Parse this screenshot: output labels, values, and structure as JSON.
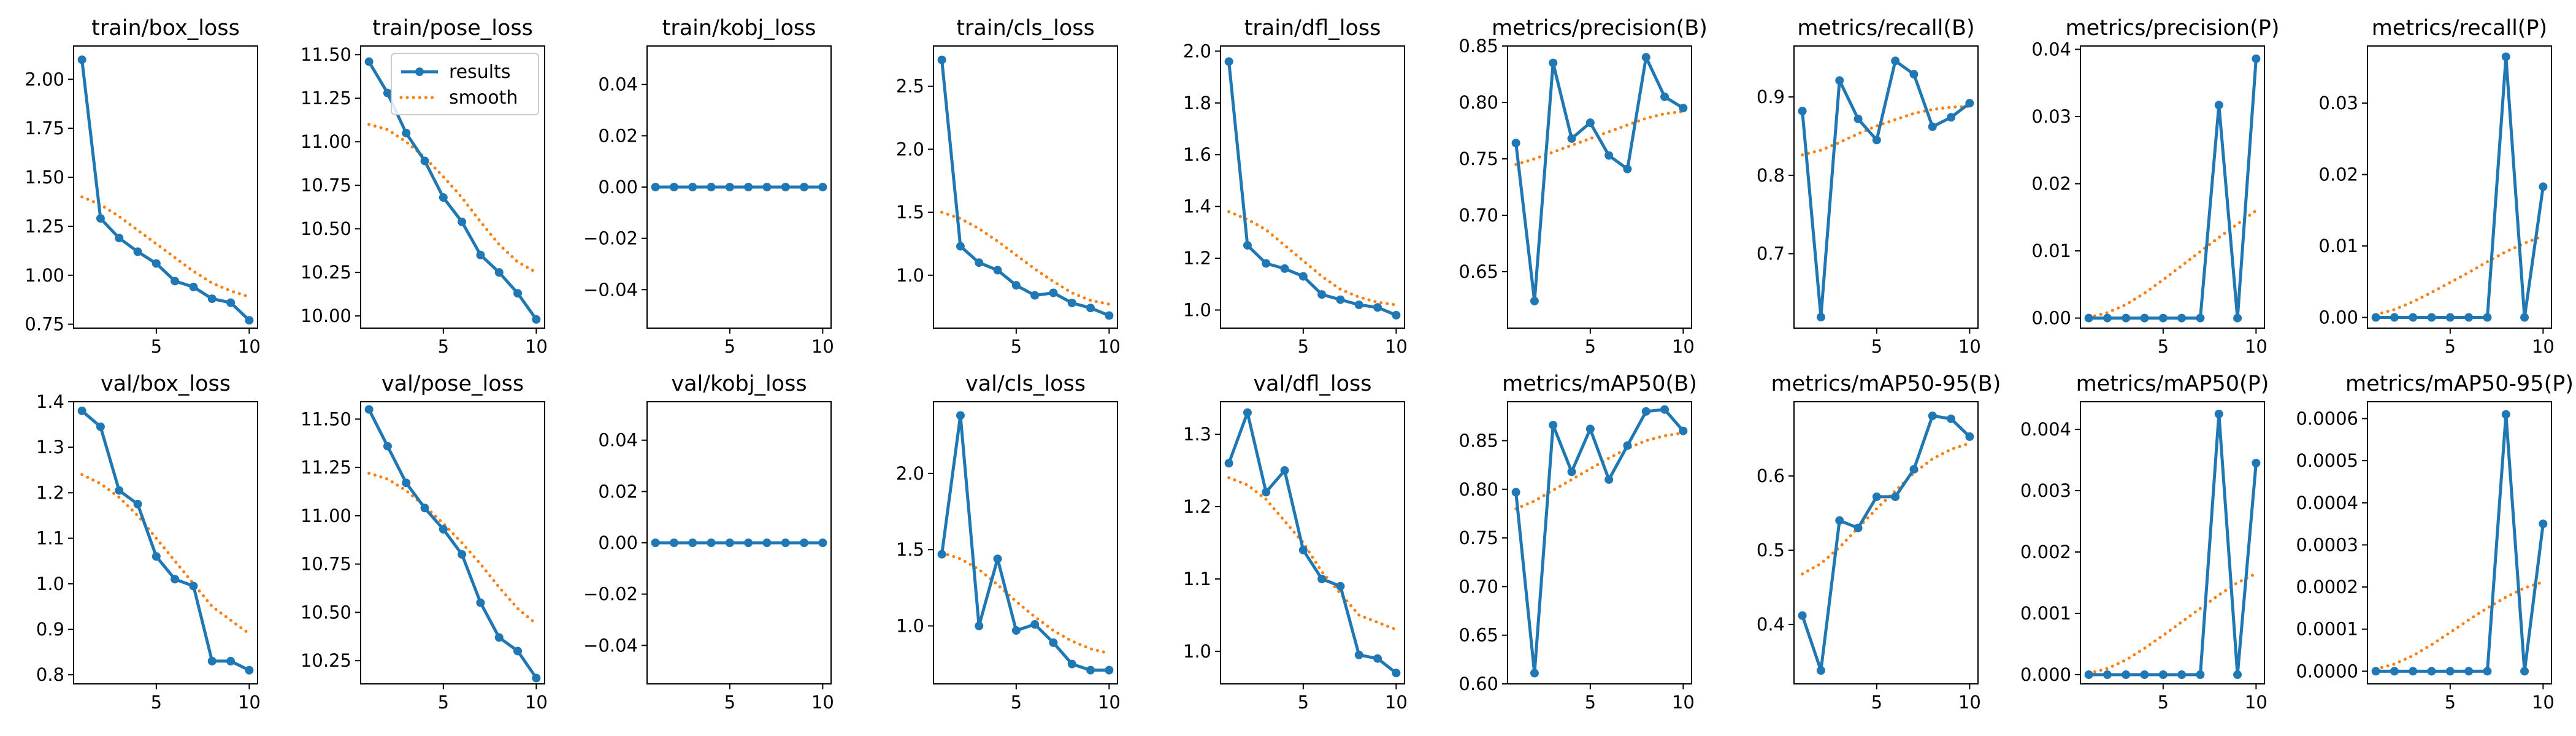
{
  "colors": {
    "results": "#1f77b4",
    "smooth": "#ff7f0e",
    "frame": "#000000",
    "background": "#ffffff"
  },
  "legend": {
    "location": "upper right of train/pose_loss panel",
    "items": [
      "results",
      "smooth"
    ]
  },
  "chart_data": [
    {
      "type": "line",
      "title": "train/box_loss",
      "x": [
        1,
        2,
        3,
        4,
        5,
        6,
        7,
        8,
        9,
        10
      ],
      "ylim": [
        0.73,
        2.17
      ],
      "yticks": [
        "0.75",
        "1.00",
        "1.25",
        "1.50",
        "1.75",
        "2.00"
      ],
      "ytick_values": [
        0.75,
        1.0,
        1.25,
        1.5,
        1.75,
        2.0
      ],
      "xticks": [
        5,
        10
      ],
      "series": [
        {
          "name": "results",
          "values": [
            2.1,
            1.29,
            1.19,
            1.12,
            1.06,
            0.97,
            0.94,
            0.88,
            0.86,
            0.77
          ]
        },
        {
          "name": "smooth",
          "values": [
            1.4,
            1.36,
            1.3,
            1.23,
            1.16,
            1.09,
            1.02,
            0.96,
            0.92,
            0.89
          ]
        }
      ]
    },
    {
      "type": "line",
      "title": "train/pose_loss",
      "x": [
        1,
        2,
        3,
        4,
        5,
        6,
        7,
        8,
        9,
        10
      ],
      "ylim": [
        9.93,
        11.55
      ],
      "yticks": [
        "10.00",
        "10.25",
        "10.50",
        "10.75",
        "11.00",
        "11.25",
        "11.50"
      ],
      "ytick_values": [
        10.0,
        10.25,
        10.5,
        10.75,
        11.0,
        11.25,
        11.5
      ],
      "xticks": [
        5,
        10
      ],
      "series": [
        {
          "name": "results",
          "values": [
            11.46,
            11.28,
            11.05,
            10.89,
            10.68,
            10.54,
            10.35,
            10.25,
            10.13,
            9.98
          ]
        },
        {
          "name": "smooth",
          "values": [
            11.1,
            11.07,
            11.0,
            10.91,
            10.8,
            10.68,
            10.54,
            10.41,
            10.31,
            10.25
          ]
        }
      ]
    },
    {
      "type": "line",
      "title": "train/kobj_loss",
      "x": [
        1,
        2,
        3,
        4,
        5,
        6,
        7,
        8,
        9,
        10
      ],
      "ylim": [
        -0.055,
        0.055
      ],
      "yticks": [
        "−0.04",
        "−0.02",
        "0.00",
        "0.02",
        "0.04"
      ],
      "ytick_values": [
        -0.04,
        -0.02,
        0.0,
        0.02,
        0.04
      ],
      "xticks": [
        5,
        10
      ],
      "series": [
        {
          "name": "results",
          "values": [
            0,
            0,
            0,
            0,
            0,
            0,
            0,
            0,
            0,
            0
          ]
        },
        {
          "name": "smooth",
          "values": [
            0,
            0,
            0,
            0,
            0,
            0,
            0,
            0,
            0,
            0
          ]
        }
      ]
    },
    {
      "type": "line",
      "title": "train/cls_loss",
      "x": [
        1,
        2,
        3,
        4,
        5,
        6,
        7,
        8,
        9,
        10
      ],
      "ylim": [
        0.58,
        2.82
      ],
      "yticks": [
        "1.0",
        "1.5",
        "2.0",
        "2.5"
      ],
      "ytick_values": [
        1.0,
        1.5,
        2.0,
        2.5
      ],
      "xticks": [
        5,
        10
      ],
      "series": [
        {
          "name": "results",
          "values": [
            2.71,
            1.23,
            1.1,
            1.04,
            0.92,
            0.84,
            0.86,
            0.78,
            0.74,
            0.68
          ]
        },
        {
          "name": "smooth",
          "values": [
            1.5,
            1.45,
            1.37,
            1.27,
            1.16,
            1.05,
            0.95,
            0.86,
            0.8,
            0.77
          ]
        }
      ]
    },
    {
      "type": "line",
      "title": "train/dfl_loss",
      "x": [
        1,
        2,
        3,
        4,
        5,
        6,
        7,
        8,
        9,
        10
      ],
      "ylim": [
        0.93,
        2.02
      ],
      "yticks": [
        "1.0",
        "1.2",
        "1.4",
        "1.6",
        "1.8",
        "2.0"
      ],
      "ytick_values": [
        1.0,
        1.2,
        1.4,
        1.6,
        1.8,
        2.0
      ],
      "xticks": [
        5,
        10
      ],
      "series": [
        {
          "name": "results",
          "values": [
            1.96,
            1.25,
            1.18,
            1.16,
            1.13,
            1.06,
            1.04,
            1.02,
            1.01,
            0.98
          ]
        },
        {
          "name": "smooth",
          "values": [
            1.38,
            1.35,
            1.31,
            1.25,
            1.19,
            1.13,
            1.08,
            1.05,
            1.03,
            1.02
          ]
        }
      ]
    },
    {
      "type": "line",
      "title": "metrics/precision(B)",
      "x": [
        1,
        2,
        3,
        4,
        5,
        6,
        7,
        8,
        9,
        10
      ],
      "ylim": [
        0.6,
        0.85
      ],
      "yticks": [
        "0.65",
        "0.70",
        "0.75",
        "0.80",
        "0.85"
      ],
      "ytick_values": [
        0.65,
        0.7,
        0.75,
        0.8,
        0.85
      ],
      "xticks": [
        5,
        10
      ],
      "series": [
        {
          "name": "results",
          "values": [
            0.764,
            0.624,
            0.835,
            0.768,
            0.782,
            0.753,
            0.741,
            0.84,
            0.805,
            0.795
          ]
        },
        {
          "name": "smooth",
          "values": [
            0.745,
            0.75,
            0.756,
            0.762,
            0.768,
            0.774,
            0.78,
            0.786,
            0.79,
            0.792
          ]
        }
      ]
    },
    {
      "type": "line",
      "title": "metrics/recall(B)",
      "x": [
        1,
        2,
        3,
        4,
        5,
        6,
        7,
        8,
        9,
        10
      ],
      "ylim": [
        0.605,
        0.965
      ],
      "yticks": [
        "0.7",
        "0.8",
        "0.9"
      ],
      "ytick_values": [
        0.7,
        0.8,
        0.9
      ],
      "xticks": [
        5,
        10
      ],
      "series": [
        {
          "name": "results",
          "values": [
            0.882,
            0.619,
            0.921,
            0.872,
            0.845,
            0.946,
            0.929,
            0.862,
            0.874,
            0.892
          ]
        },
        {
          "name": "smooth",
          "values": [
            0.826,
            0.832,
            0.842,
            0.853,
            0.863,
            0.871,
            0.879,
            0.884,
            0.887,
            0.888
          ]
        }
      ]
    },
    {
      "type": "line",
      "title": "metrics/precision(P)",
      "x": [
        1,
        2,
        3,
        4,
        5,
        6,
        7,
        8,
        9,
        10
      ],
      "ylim": [
        -0.0015,
        0.0405
      ],
      "yticks": [
        "0.00",
        "0.01",
        "0.02",
        "0.03",
        "0.04"
      ],
      "ytick_values": [
        0.0,
        0.01,
        0.02,
        0.03,
        0.04
      ],
      "xticks": [
        5,
        10
      ],
      "series": [
        {
          "name": "results",
          "values": [
            0,
            0,
            0,
            0,
            0,
            0,
            0,
            0.0317,
            0,
            0.0386
          ]
        },
        {
          "name": "smooth",
          "values": [
            0.0001,
            0.0008,
            0.002,
            0.0037,
            0.0057,
            0.0078,
            0.0099,
            0.012,
            0.014,
            0.016
          ]
        }
      ]
    },
    {
      "type": "line",
      "title": "metrics/recall(P)",
      "x": [
        1,
        2,
        3,
        4,
        5,
        6,
        7,
        8,
        9,
        10
      ],
      "ylim": [
        -0.0015,
        0.038
      ],
      "yticks": [
        "0.00",
        "0.01",
        "0.02",
        "0.03"
      ],
      "ytick_values": [
        0.0,
        0.01,
        0.02,
        0.03
      ],
      "xticks": [
        5,
        10
      ],
      "series": [
        {
          "name": "results",
          "values": [
            0,
            0,
            0,
            0,
            0,
            0,
            0,
            0.0365,
            0,
            0.0183
          ]
        },
        {
          "name": "smooth",
          "values": [
            0.0004,
            0.0011,
            0.0022,
            0.0035,
            0.0049,
            0.0063,
            0.0078,
            0.0092,
            0.0104,
            0.0114
          ]
        }
      ]
    },
    {
      "type": "line",
      "title": "val/box_loss",
      "x": [
        1,
        2,
        3,
        4,
        5,
        6,
        7,
        8,
        9,
        10
      ],
      "ylim": [
        0.78,
        1.4
      ],
      "yticks": [
        "0.8",
        "0.9",
        "1.0",
        "1.1",
        "1.2",
        "1.3",
        "1.4"
      ],
      "ytick_values": [
        0.8,
        0.9,
        1.0,
        1.1,
        1.2,
        1.3,
        1.4
      ],
      "xticks": [
        5,
        10
      ],
      "series": [
        {
          "name": "results",
          "values": [
            1.38,
            1.345,
            1.205,
            1.175,
            1.06,
            1.01,
            0.995,
            0.83,
            0.83,
            0.81
          ]
        },
        {
          "name": "smooth",
          "values": [
            1.24,
            1.22,
            1.19,
            1.15,
            1.1,
            1.05,
            1.0,
            0.95,
            0.92,
            0.89
          ]
        }
      ]
    },
    {
      "type": "line",
      "title": "val/pose_loss",
      "x": [
        1,
        2,
        3,
        4,
        5,
        6,
        7,
        8,
        9,
        10
      ],
      "ylim": [
        10.13,
        11.59
      ],
      "yticks": [
        "10.25",
        "10.50",
        "10.75",
        "11.00",
        "11.25",
        "11.50"
      ],
      "ytick_values": [
        10.25,
        10.5,
        10.75,
        11.0,
        11.25,
        11.5
      ],
      "xticks": [
        5,
        10
      ],
      "series": [
        {
          "name": "results",
          "values": [
            11.55,
            11.36,
            11.17,
            11.04,
            10.93,
            10.8,
            10.55,
            10.37,
            10.3,
            10.16
          ]
        },
        {
          "name": "smooth",
          "values": [
            11.22,
            11.19,
            11.13,
            11.05,
            10.96,
            10.86,
            10.75,
            10.63,
            10.52,
            10.44
          ]
        }
      ]
    },
    {
      "type": "line",
      "title": "val/kobj_loss",
      "x": [
        1,
        2,
        3,
        4,
        5,
        6,
        7,
        8,
        9,
        10
      ],
      "ylim": [
        -0.055,
        0.055
      ],
      "yticks": [
        "−0.04",
        "−0.02",
        "0.00",
        "0.02",
        "0.04"
      ],
      "ytick_values": [
        -0.04,
        -0.02,
        0.0,
        0.02,
        0.04
      ],
      "xticks": [
        5,
        10
      ],
      "series": [
        {
          "name": "results",
          "values": [
            0,
            0,
            0,
            0,
            0,
            0,
            0,
            0,
            0,
            0
          ]
        },
        {
          "name": "smooth",
          "values": [
            0,
            0,
            0,
            0,
            0,
            0,
            0,
            0,
            0,
            0
          ]
        }
      ]
    },
    {
      "type": "line",
      "title": "val/cls_loss",
      "x": [
        1,
        2,
        3,
        4,
        5,
        6,
        7,
        8,
        9,
        10
      ],
      "ylim": [
        0.62,
        2.47
      ],
      "yticks": [
        "1.0",
        "1.5",
        "2.0"
      ],
      "ytick_values": [
        1.0,
        1.5,
        2.0
      ],
      "xticks": [
        5,
        10
      ],
      "series": [
        {
          "name": "results",
          "values": [
            1.47,
            2.38,
            1.0,
            1.44,
            0.97,
            1.01,
            0.89,
            0.75,
            0.71,
            0.71
          ]
        },
        {
          "name": "smooth",
          "values": [
            1.48,
            1.44,
            1.37,
            1.27,
            1.16,
            1.06,
            0.97,
            0.9,
            0.85,
            0.82
          ]
        }
      ]
    },
    {
      "type": "line",
      "title": "val/dfl_loss",
      "x": [
        1,
        2,
        3,
        4,
        5,
        6,
        7,
        8,
        9,
        10
      ],
      "ylim": [
        0.955,
        1.345
      ],
      "yticks": [
        "1.0",
        "1.1",
        "1.2",
        "1.3"
      ],
      "ytick_values": [
        1.0,
        1.1,
        1.2,
        1.3
      ],
      "xticks": [
        5,
        10
      ],
      "series": [
        {
          "name": "results",
          "values": [
            1.26,
            1.33,
            1.22,
            1.25,
            1.14,
            1.1,
            1.09,
            0.995,
            0.99,
            0.97
          ]
        },
        {
          "name": "smooth",
          "values": [
            1.24,
            1.23,
            1.21,
            1.18,
            1.15,
            1.11,
            1.08,
            1.05,
            1.04,
            1.03
          ]
        }
      ]
    },
    {
      "type": "line",
      "title": "metrics/mAP50(B)",
      "x": [
        1,
        2,
        3,
        4,
        5,
        6,
        7,
        8,
        9,
        10
      ],
      "ylim": [
        0.6,
        0.89
      ],
      "yticks": [
        "0.60",
        "0.65",
        "0.70",
        "0.75",
        "0.80",
        "0.85"
      ],
      "ytick_values": [
        0.6,
        0.65,
        0.7,
        0.75,
        0.8,
        0.85
      ],
      "xticks": [
        5,
        10
      ],
      "series": [
        {
          "name": "results",
          "values": [
            0.797,
            0.611,
            0.866,
            0.818,
            0.862,
            0.81,
            0.845,
            0.88,
            0.882,
            0.86
          ]
        },
        {
          "name": "smooth",
          "values": [
            0.78,
            0.788,
            0.799,
            0.81,
            0.821,
            0.832,
            0.842,
            0.85,
            0.855,
            0.858
          ]
        }
      ]
    },
    {
      "type": "line",
      "title": "metrics/mAP50-95(B)",
      "x": [
        1,
        2,
        3,
        4,
        5,
        6,
        7,
        8,
        9,
        10
      ],
      "ylim": [
        0.32,
        0.7
      ],
      "yticks": [
        "0.4",
        "0.5",
        "0.6"
      ],
      "ytick_values": [
        0.4,
        0.5,
        0.6
      ],
      "xticks": [
        5,
        10
      ],
      "series": [
        {
          "name": "results",
          "values": [
            0.412,
            0.338,
            0.54,
            0.53,
            0.572,
            0.572,
            0.609,
            0.681,
            0.677,
            0.653
          ]
        },
        {
          "name": "smooth",
          "values": [
            0.468,
            0.482,
            0.504,
            0.53,
            0.556,
            0.58,
            0.604,
            0.623,
            0.636,
            0.644
          ]
        }
      ]
    },
    {
      "type": "line",
      "title": "metrics/mAP50(P)",
      "x": [
        1,
        2,
        3,
        4,
        5,
        6,
        7,
        8,
        9,
        10
      ],
      "ylim": [
        -0.00015,
        0.00445
      ],
      "yticks": [
        "0.000",
        "0.001",
        "0.002",
        "0.003",
        "0.004"
      ],
      "ytick_values": [
        0.0,
        0.001,
        0.002,
        0.003,
        0.004
      ],
      "xticks": [
        5,
        10
      ],
      "series": [
        {
          "name": "results",
          "values": [
            0,
            0,
            0,
            0,
            0,
            0,
            0,
            0.00425,
            0,
            0.00345
          ]
        },
        {
          "name": "smooth",
          "values": [
            2e-05,
            0.0001,
            0.00024,
            0.00043,
            0.00064,
            0.00086,
            0.00108,
            0.0013,
            0.0015,
            0.00165
          ]
        }
      ]
    },
    {
      "type": "line",
      "title": "metrics/mAP50-95(P)",
      "x": [
        1,
        2,
        3,
        4,
        5,
        6,
        7,
        8,
        9,
        10
      ],
      "ylim": [
        -3e-05,
        0.00064
      ],
      "yticks": [
        "0.0000",
        "0.0001",
        "0.0002",
        "0.0003",
        "0.0004",
        "0.0005",
        "0.0006"
      ],
      "ytick_values": [
        0.0,
        0.0001,
        0.0002,
        0.0003,
        0.0004,
        0.0005,
        0.0006
      ],
      "xticks": [
        5,
        10
      ],
      "series": [
        {
          "name": "results",
          "values": [
            0,
            0,
            0,
            0,
            0,
            0,
            0,
            0.00061,
            0,
            0.00035
          ]
        },
        {
          "name": "smooth",
          "values": [
            5e-06,
            1.7e-05,
            3.7e-05,
            6.3e-05,
            9.2e-05,
            0.000122,
            0.00015,
            0.000176,
            0.000198,
            0.000212
          ]
        }
      ]
    }
  ]
}
